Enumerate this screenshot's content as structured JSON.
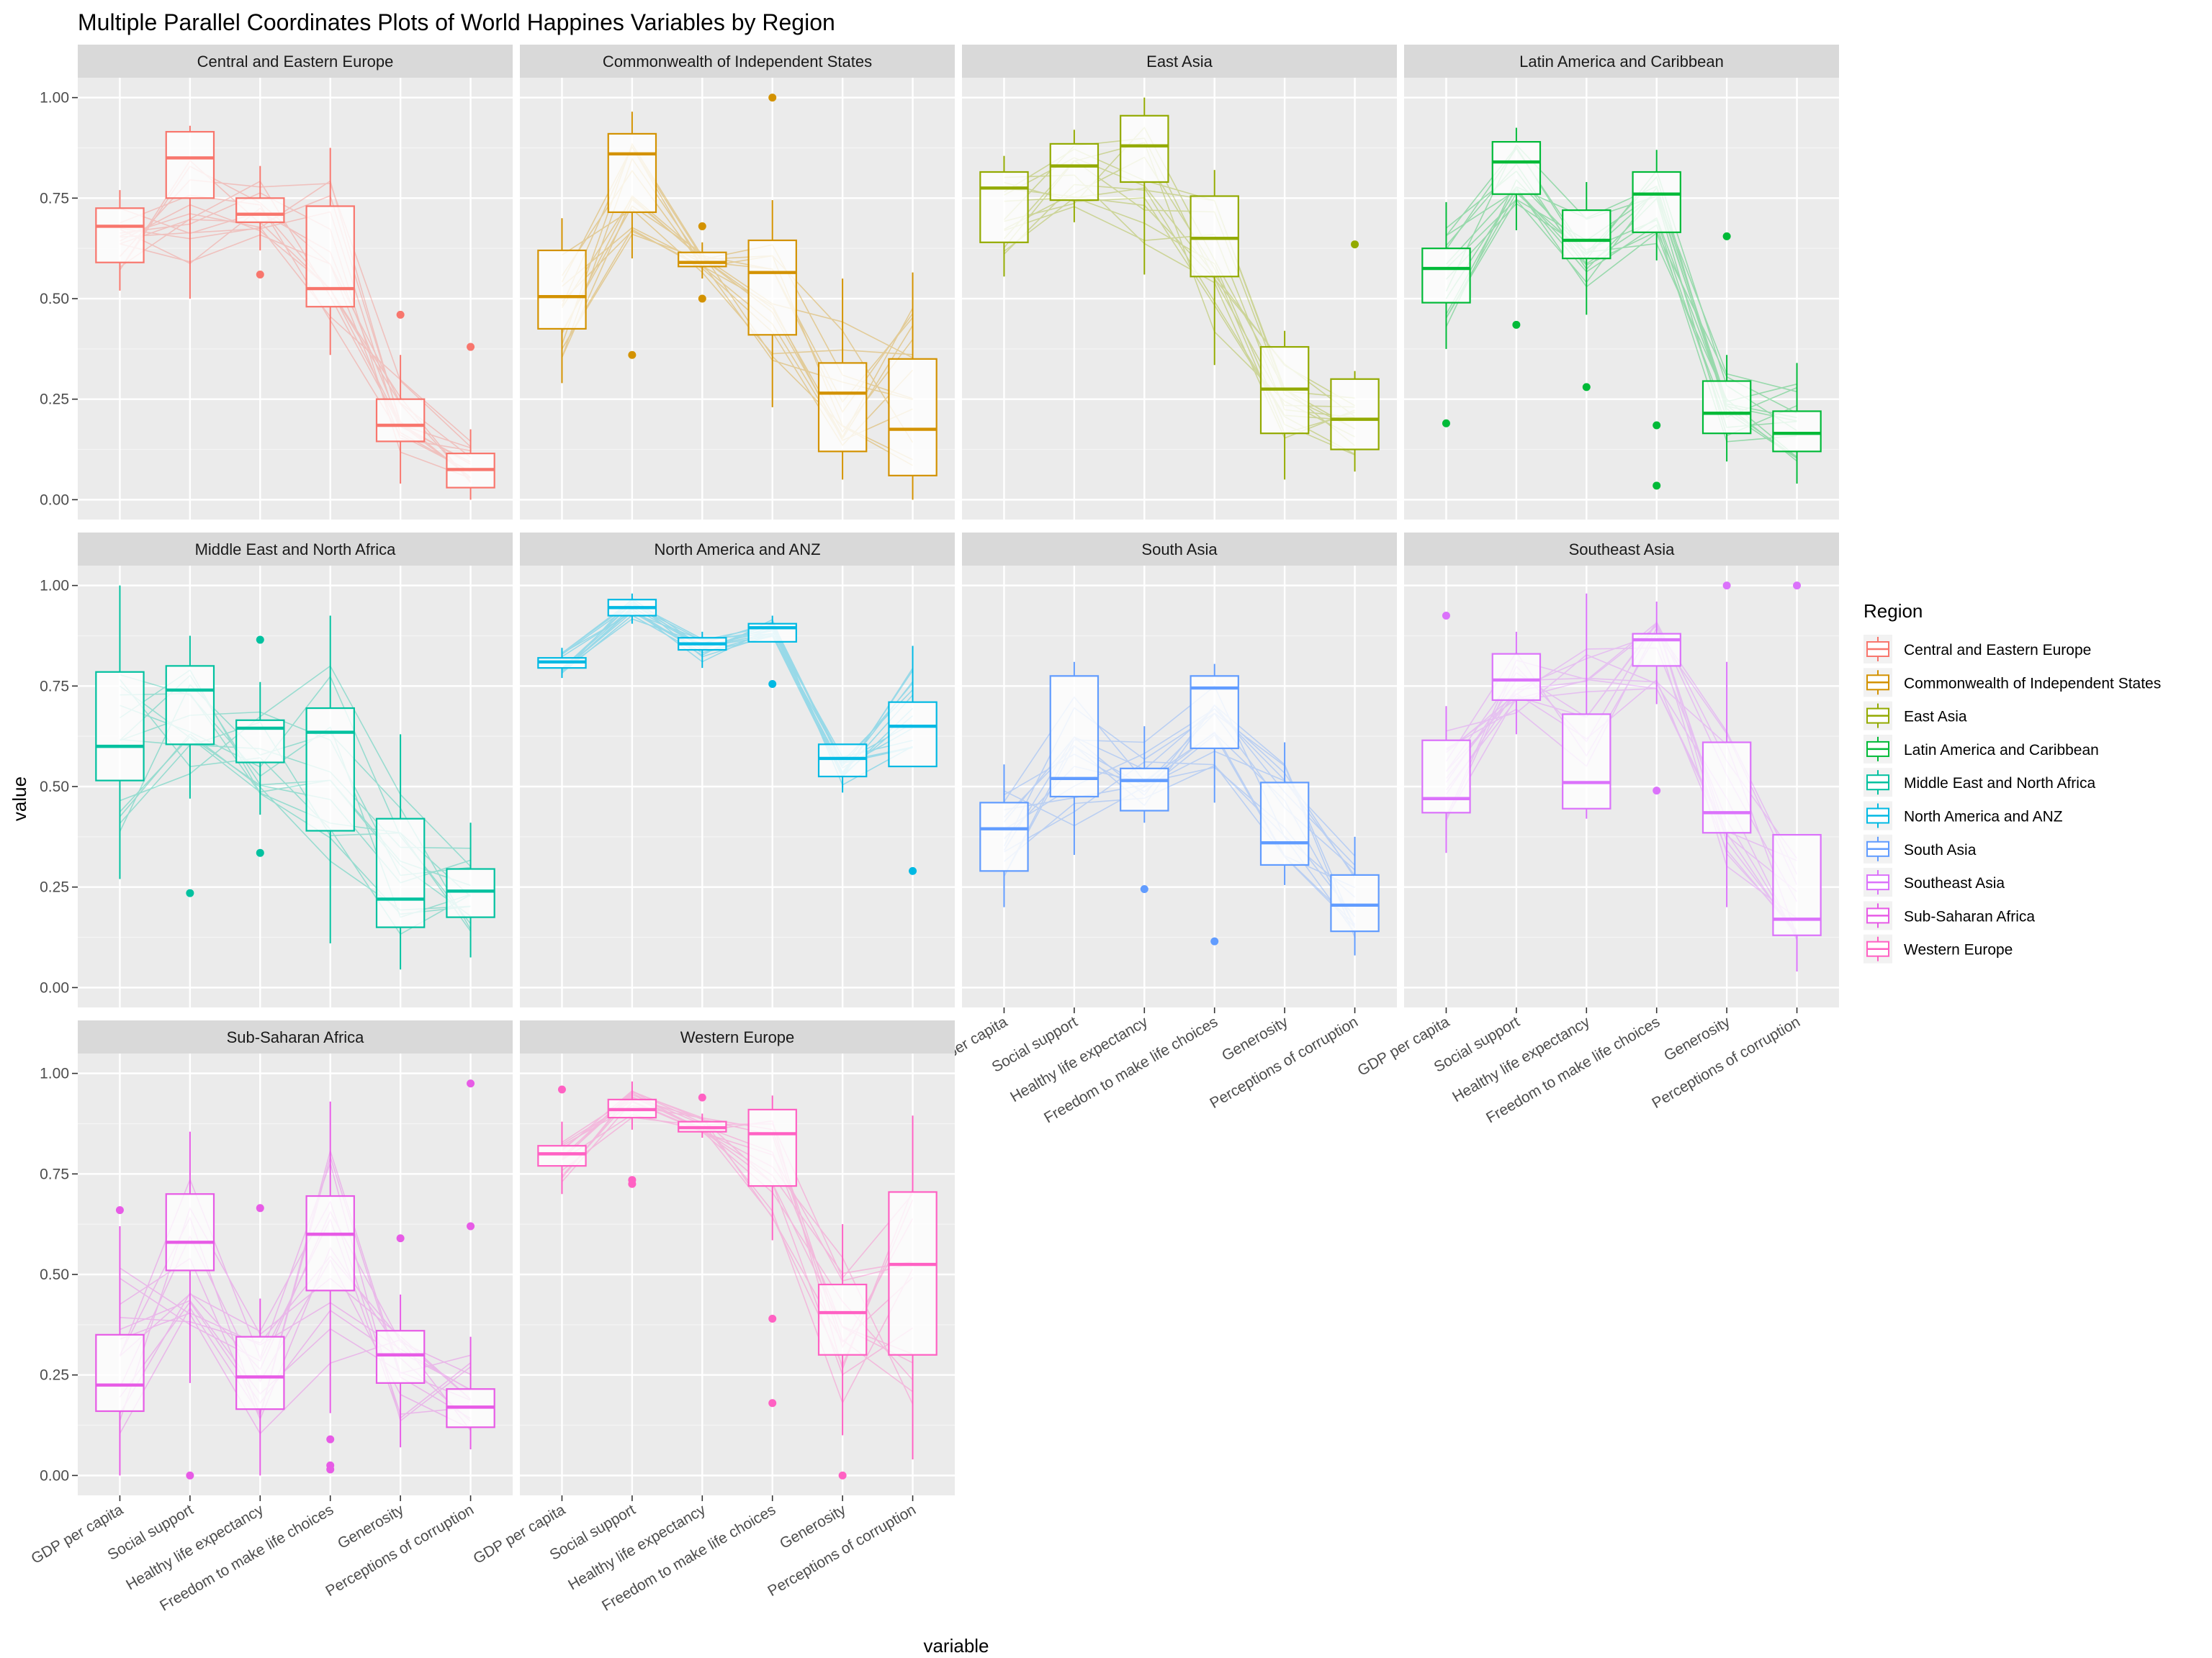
{
  "chart_data": {
    "type": "box",
    "title": "Multiple Parallel Coordinates Plots of World Happines Variables by Region",
    "xlabel": "variable",
    "ylabel": "value",
    "ylim": [
      0,
      1
    ],
    "y_ticks": [
      "0.00",
      "0.25",
      "0.50",
      "0.75",
      "1.00"
    ],
    "categories": [
      "GDP per capita",
      "Social support",
      "Healthy life expectancy",
      "Freedom to make life choices",
      "Generosity",
      "Perceptions of corruption"
    ],
    "legend": {
      "title": "Region",
      "position": "right"
    },
    "grid": true,
    "panels": [
      {
        "region": "Central and Eastern Europe",
        "color": "#F8766D",
        "boxes": [
          {
            "q1": 0.59,
            "median": 0.68,
            "q3": 0.725,
            "lo": 0.52,
            "hi": 0.77,
            "outliers": []
          },
          {
            "q1": 0.75,
            "median": 0.85,
            "q3": 0.915,
            "lo": 0.5,
            "hi": 0.93,
            "outliers": []
          },
          {
            "q1": 0.69,
            "median": 0.71,
            "q3": 0.75,
            "lo": 0.62,
            "hi": 0.83,
            "outliers": [
              0.56
            ]
          },
          {
            "q1": 0.48,
            "median": 0.525,
            "q3": 0.73,
            "lo": 0.36,
            "hi": 0.875,
            "outliers": []
          },
          {
            "q1": 0.145,
            "median": 0.185,
            "q3": 0.25,
            "lo": 0.04,
            "hi": 0.36,
            "outliers": [
              0.46
            ]
          },
          {
            "q1": 0.03,
            "median": 0.075,
            "q3": 0.115,
            "lo": 0.0,
            "hi": 0.175,
            "outliers": [
              0.38
            ]
          }
        ]
      },
      {
        "region": "Commonwealth of Independent States",
        "color": "#D39200",
        "boxes": [
          {
            "q1": 0.425,
            "median": 0.505,
            "q3": 0.62,
            "lo": 0.29,
            "hi": 0.7,
            "outliers": []
          },
          {
            "q1": 0.715,
            "median": 0.86,
            "q3": 0.91,
            "lo": 0.6,
            "hi": 0.965,
            "outliers": [
              0.36
            ]
          },
          {
            "q1": 0.58,
            "median": 0.59,
            "q3": 0.615,
            "lo": 0.55,
            "hi": 0.64,
            "outliers": [
              0.68,
              0.5
            ]
          },
          {
            "q1": 0.41,
            "median": 0.565,
            "q3": 0.645,
            "lo": 0.23,
            "hi": 0.745,
            "outliers": [
              1.0
            ]
          },
          {
            "q1": 0.12,
            "median": 0.265,
            "q3": 0.34,
            "lo": 0.05,
            "hi": 0.55,
            "outliers": []
          },
          {
            "q1": 0.06,
            "median": 0.175,
            "q3": 0.35,
            "lo": 0.0,
            "hi": 0.565,
            "outliers": []
          }
        ]
      },
      {
        "region": "East Asia",
        "color": "#93AA00",
        "boxes": [
          {
            "q1": 0.64,
            "median": 0.775,
            "q3": 0.815,
            "lo": 0.555,
            "hi": 0.855,
            "outliers": []
          },
          {
            "q1": 0.745,
            "median": 0.83,
            "q3": 0.885,
            "lo": 0.69,
            "hi": 0.92,
            "outliers": []
          },
          {
            "q1": 0.79,
            "median": 0.88,
            "q3": 0.955,
            "lo": 0.56,
            "hi": 1.0,
            "outliers": []
          },
          {
            "q1": 0.555,
            "median": 0.65,
            "q3": 0.755,
            "lo": 0.335,
            "hi": 0.82,
            "outliers": []
          },
          {
            "q1": 0.165,
            "median": 0.275,
            "q3": 0.38,
            "lo": 0.05,
            "hi": 0.42,
            "outliers": []
          },
          {
            "q1": 0.125,
            "median": 0.2,
            "q3": 0.3,
            "lo": 0.07,
            "hi": 0.32,
            "outliers": [
              0.635
            ]
          }
        ]
      },
      {
        "region": "Latin America and Caribbean",
        "color": "#00BA38",
        "boxes": [
          {
            "q1": 0.49,
            "median": 0.575,
            "q3": 0.625,
            "lo": 0.375,
            "hi": 0.74,
            "outliers": [
              0.19
            ]
          },
          {
            "q1": 0.76,
            "median": 0.84,
            "q3": 0.89,
            "lo": 0.67,
            "hi": 0.925,
            "outliers": [
              0.435
            ]
          },
          {
            "q1": 0.6,
            "median": 0.645,
            "q3": 0.72,
            "lo": 0.46,
            "hi": 0.79,
            "outliers": [
              0.28
            ]
          },
          {
            "q1": 0.665,
            "median": 0.76,
            "q3": 0.815,
            "lo": 0.595,
            "hi": 0.87,
            "outliers": [
              0.185,
              0.035
            ]
          },
          {
            "q1": 0.165,
            "median": 0.215,
            "q3": 0.295,
            "lo": 0.095,
            "hi": 0.36,
            "outliers": [
              0.655
            ]
          },
          {
            "q1": 0.12,
            "median": 0.165,
            "q3": 0.22,
            "lo": 0.04,
            "hi": 0.34,
            "outliers": []
          }
        ]
      },
      {
        "region": "Middle East and North Africa",
        "color": "#00C19F",
        "boxes": [
          {
            "q1": 0.515,
            "median": 0.6,
            "q3": 0.785,
            "lo": 0.27,
            "hi": 1.0,
            "outliers": []
          },
          {
            "q1": 0.605,
            "median": 0.74,
            "q3": 0.8,
            "lo": 0.47,
            "hi": 0.875,
            "outliers": [
              0.235
            ]
          },
          {
            "q1": 0.56,
            "median": 0.645,
            "q3": 0.665,
            "lo": 0.43,
            "hi": 0.76,
            "outliers": [
              0.865,
              0.335
            ]
          },
          {
            "q1": 0.39,
            "median": 0.635,
            "q3": 0.695,
            "lo": 0.11,
            "hi": 0.925,
            "outliers": []
          },
          {
            "q1": 0.15,
            "median": 0.22,
            "q3": 0.42,
            "lo": 0.045,
            "hi": 0.63,
            "outliers": []
          },
          {
            "q1": 0.175,
            "median": 0.24,
            "q3": 0.295,
            "lo": 0.075,
            "hi": 0.41,
            "outliers": []
          }
        ]
      },
      {
        "region": "North America and ANZ",
        "color": "#00B9E3",
        "boxes": [
          {
            "q1": 0.795,
            "median": 0.81,
            "q3": 0.82,
            "lo": 0.77,
            "hi": 0.845,
            "outliers": []
          },
          {
            "q1": 0.925,
            "median": 0.945,
            "q3": 0.965,
            "lo": 0.905,
            "hi": 0.98,
            "outliers": []
          },
          {
            "q1": 0.84,
            "median": 0.855,
            "q3": 0.87,
            "lo": 0.795,
            "hi": 0.885,
            "outliers": []
          },
          {
            "q1": 0.86,
            "median": 0.895,
            "q3": 0.905,
            "lo": 0.86,
            "hi": 0.925,
            "outliers": [
              0.755
            ]
          },
          {
            "q1": 0.525,
            "median": 0.57,
            "q3": 0.605,
            "lo": 0.485,
            "hi": 0.605,
            "outliers": []
          },
          {
            "q1": 0.55,
            "median": 0.65,
            "q3": 0.71,
            "lo": 0.55,
            "hi": 0.85,
            "outliers": [
              0.29
            ]
          }
        ]
      },
      {
        "region": "South Asia",
        "color": "#619CFF",
        "boxes": [
          {
            "q1": 0.29,
            "median": 0.395,
            "q3": 0.46,
            "lo": 0.2,
            "hi": 0.555,
            "outliers": []
          },
          {
            "q1": 0.475,
            "median": 0.52,
            "q3": 0.775,
            "lo": 0.33,
            "hi": 0.81,
            "outliers": []
          },
          {
            "q1": 0.44,
            "median": 0.515,
            "q3": 0.545,
            "lo": 0.41,
            "hi": 0.65,
            "outliers": [
              0.245
            ]
          },
          {
            "q1": 0.595,
            "median": 0.745,
            "q3": 0.775,
            "lo": 0.46,
            "hi": 0.805,
            "outliers": [
              0.115
            ]
          },
          {
            "q1": 0.305,
            "median": 0.36,
            "q3": 0.51,
            "lo": 0.255,
            "hi": 0.61,
            "outliers": []
          },
          {
            "q1": 0.14,
            "median": 0.205,
            "q3": 0.28,
            "lo": 0.08,
            "hi": 0.375,
            "outliers": []
          }
        ]
      },
      {
        "region": "Southeast Asia",
        "color": "#DB72FB",
        "boxes": [
          {
            "q1": 0.435,
            "median": 0.47,
            "q3": 0.615,
            "lo": 0.335,
            "hi": 0.7,
            "outliers": [
              0.925
            ]
          },
          {
            "q1": 0.715,
            "median": 0.765,
            "q3": 0.83,
            "lo": 0.63,
            "hi": 0.885,
            "outliers": []
          },
          {
            "q1": 0.445,
            "median": 0.51,
            "q3": 0.68,
            "lo": 0.42,
            "hi": 0.98,
            "outliers": []
          },
          {
            "q1": 0.8,
            "median": 0.865,
            "q3": 0.88,
            "lo": 0.705,
            "hi": 0.96,
            "outliers": [
              0.49
            ]
          },
          {
            "q1": 0.385,
            "median": 0.435,
            "q3": 0.61,
            "lo": 0.2,
            "hi": 0.81,
            "outliers": [
              1.0
            ]
          },
          {
            "q1": 0.13,
            "median": 0.17,
            "q3": 0.38,
            "lo": 0.04,
            "hi": 0.38,
            "outliers": [
              1.0
            ]
          }
        ]
      },
      {
        "region": "Sub-Saharan Africa",
        "color": "#E75BE6",
        "boxes": [
          {
            "q1": 0.16,
            "median": 0.225,
            "q3": 0.35,
            "lo": 0.0,
            "hi": 0.62,
            "outliers": [
              0.66
            ]
          },
          {
            "q1": 0.51,
            "median": 0.58,
            "q3": 0.7,
            "lo": 0.23,
            "hi": 0.855,
            "outliers": [
              0.0
            ]
          },
          {
            "q1": 0.165,
            "median": 0.245,
            "q3": 0.345,
            "lo": 0.0,
            "hi": 0.44,
            "outliers": [
              0.665
            ]
          },
          {
            "q1": 0.46,
            "median": 0.6,
            "q3": 0.695,
            "lo": 0.155,
            "hi": 0.93,
            "outliers": [
              0.09,
              0.025,
              0.015
            ]
          },
          {
            "q1": 0.23,
            "median": 0.3,
            "q3": 0.36,
            "lo": 0.07,
            "hi": 0.45,
            "outliers": [
              0.59
            ]
          },
          {
            "q1": 0.12,
            "median": 0.17,
            "q3": 0.215,
            "lo": 0.065,
            "hi": 0.345,
            "outliers": [
              0.975,
              0.62
            ]
          }
        ]
      },
      {
        "region": "Western Europe",
        "color": "#FF61C3",
        "boxes": [
          {
            "q1": 0.77,
            "median": 0.8,
            "q3": 0.82,
            "lo": 0.7,
            "hi": 0.88,
            "outliers": [
              0.96
            ]
          },
          {
            "q1": 0.89,
            "median": 0.91,
            "q3": 0.935,
            "lo": 0.86,
            "hi": 0.98,
            "outliers": [
              0.735,
              0.725
            ]
          },
          {
            "q1": 0.855,
            "median": 0.865,
            "q3": 0.88,
            "lo": 0.84,
            "hi": 0.9,
            "outliers": [
              0.94
            ]
          },
          {
            "q1": 0.72,
            "median": 0.85,
            "q3": 0.91,
            "lo": 0.585,
            "hi": 0.945,
            "outliers": [
              0.39,
              0.18
            ]
          },
          {
            "q1": 0.3,
            "median": 0.405,
            "q3": 0.475,
            "lo": 0.1,
            "hi": 0.625,
            "outliers": [
              0.0
            ]
          },
          {
            "q1": 0.3,
            "median": 0.525,
            "q3": 0.705,
            "lo": 0.04,
            "hi": 0.895,
            "outliers": []
          }
        ]
      }
    ]
  }
}
